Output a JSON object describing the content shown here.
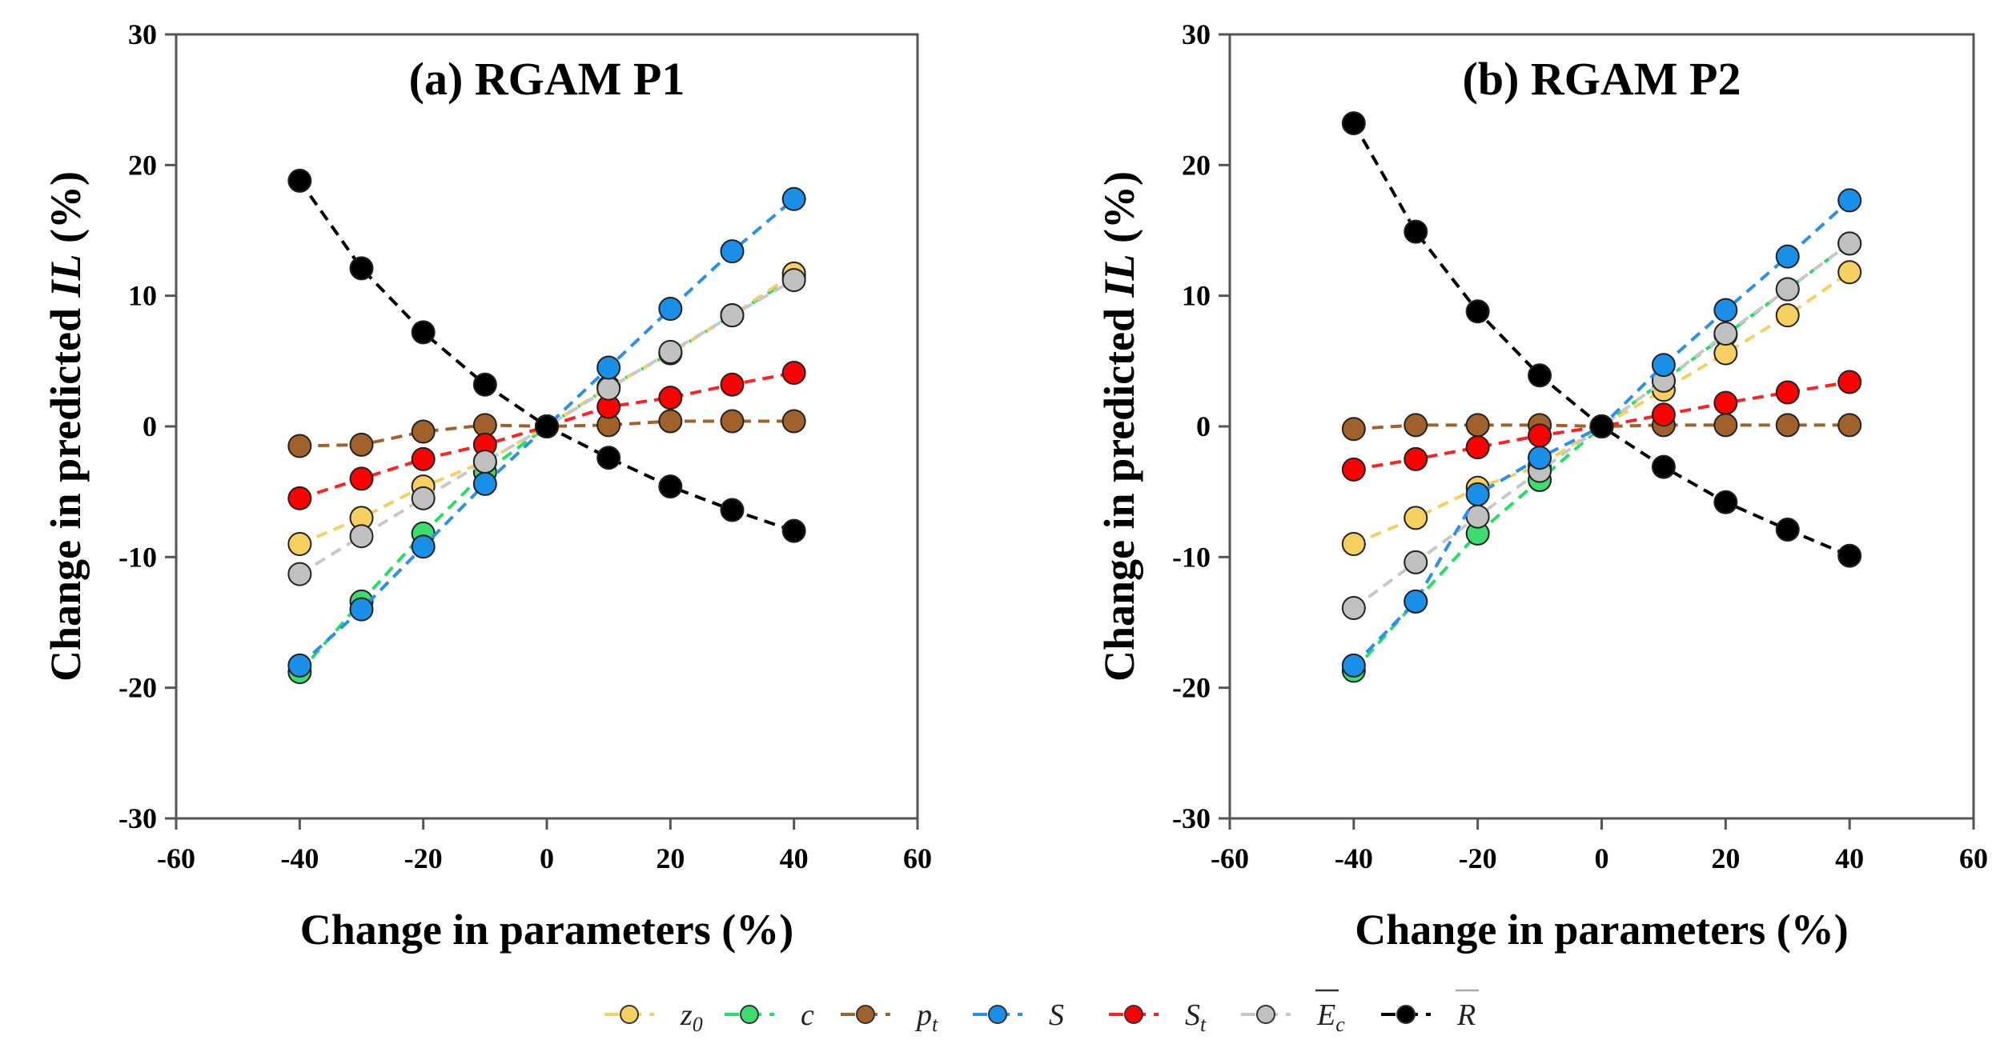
{
  "chart_data": [
    {
      "type": "line",
      "title": "(a) RGAM P1",
      "xlabel": "Change in parameters (%)",
      "ylabel_parts": [
        "Change in predicted ",
        "IL",
        " (%)"
      ],
      "xlim": [
        -60,
        60
      ],
      "ylim": [
        -30,
        30
      ],
      "xticks": [
        -60,
        -40,
        -20,
        0,
        20,
        40,
        60
      ],
      "yticks": [
        -30,
        -20,
        -10,
        0,
        10,
        20,
        30
      ],
      "grid": false,
      "x": [
        -40,
        -30,
        -20,
        -10,
        0,
        10,
        20,
        30,
        40
      ],
      "series": [
        {
          "key": "c",
          "values": [
            -18.8,
            -13.4,
            -8.2,
            -3.5,
            0,
            3.0,
            5.6,
            8.5,
            11.4
          ]
        },
        {
          "key": "z0",
          "values": [
            -9.0,
            -7.0,
            -4.6,
            -2.7,
            0,
            3.0,
            5.6,
            8.5,
            11.7
          ]
        },
        {
          "key": "pt",
          "values": [
            -1.5,
            -1.4,
            -0.4,
            0.1,
            0,
            0.1,
            0.4,
            0.4,
            0.4
          ]
        },
        {
          "key": "St",
          "values": [
            -5.5,
            -4.0,
            -2.5,
            -1.4,
            0,
            1.5,
            2.2,
            3.2,
            4.1
          ]
        },
        {
          "key": "Ec",
          "values": [
            -11.3,
            -8.4,
            -5.5,
            -2.7,
            0,
            2.9,
            5.7,
            8.5,
            11.2
          ]
        },
        {
          "key": "S",
          "values": [
            -18.3,
            -14.0,
            -9.2,
            -4.4,
            0,
            4.5,
            9.0,
            13.4,
            17.4
          ]
        },
        {
          "key": "R",
          "values": [
            18.8,
            12.1,
            7.2,
            3.2,
            0,
            -2.4,
            -4.6,
            -6.4,
            -8.0
          ]
        }
      ]
    },
    {
      "type": "line",
      "title": "(b) RGAM P2",
      "xlabel": "Change in parameters (%)",
      "ylabel_parts": [
        "Change in predicted ",
        "IL",
        " (%)"
      ],
      "xlim": [
        -60,
        60
      ],
      "ylim": [
        -30,
        30
      ],
      "xticks": [
        -60,
        -40,
        -20,
        0,
        20,
        40,
        60
      ],
      "yticks": [
        -30,
        -20,
        -10,
        0,
        10,
        20,
        30
      ],
      "grid": false,
      "x": [
        -40,
        -30,
        -20,
        -10,
        0,
        10,
        20,
        30,
        40
      ],
      "series": [
        {
          "key": "c",
          "values": [
            -18.7,
            -13.4,
            -8.2,
            -4.1,
            0,
            3.5,
            7.0,
            10.5,
            14.0
          ]
        },
        {
          "key": "z0",
          "values": [
            -9.0,
            -7.0,
            -4.7,
            -3.0,
            0,
            2.8,
            5.6,
            8.5,
            11.8
          ]
        },
        {
          "key": "pt",
          "values": [
            -0.2,
            0.1,
            0.1,
            0.1,
            0,
            0.1,
            0.1,
            0.1,
            0.1
          ]
        },
        {
          "key": "St",
          "values": [
            -3.3,
            -2.5,
            -1.6,
            -0.7,
            0,
            0.9,
            1.8,
            2.6,
            3.4
          ]
        },
        {
          "key": "Ec",
          "values": [
            -13.9,
            -10.4,
            -6.9,
            -3.4,
            0,
            3.5,
            7.1,
            10.5,
            14.0
          ]
        },
        {
          "key": "S",
          "values": [
            -18.3,
            -13.4,
            -5.2,
            -2.4,
            0,
            4.7,
            8.9,
            13.0,
            17.3
          ]
        },
        {
          "key": "R",
          "values": [
            23.2,
            14.9,
            8.8,
            3.9,
            0,
            -3.1,
            -5.8,
            -7.9,
            -9.9
          ]
        }
      ]
    }
  ],
  "legend": {
    "placement": "bottom-center",
    "items": [
      {
        "key": "z0",
        "symbol": "z",
        "sub": "0",
        "overline": false,
        "color": "#f5d060",
        "line": "#f5d060"
      },
      {
        "key": "c",
        "symbol": "c",
        "sub": "",
        "overline": false,
        "color": "#3ddc6e",
        "line": "#22e060"
      },
      {
        "key": "pt",
        "symbol": "p",
        "sub": "t",
        "overline": false,
        "color": "#a0622a",
        "line": "#a0622a"
      },
      {
        "key": "S",
        "symbol": "S",
        "sub": "",
        "overline": false,
        "color": "#1a8fe8",
        "line": "#2a8ff0"
      },
      {
        "key": "St",
        "symbol": "S",
        "sub": "t",
        "overline": false,
        "color": "#ff0000",
        "line": "#ff2020"
      },
      {
        "key": "Ec",
        "symbol": "E",
        "sub": "c",
        "overline": true,
        "color": "#c0c0c0",
        "line": "#c8c8c8"
      },
      {
        "key": "R",
        "symbol": "R",
        "sub": "",
        "overline": true,
        "color": "#000000",
        "line": "#000000"
      }
    ]
  }
}
